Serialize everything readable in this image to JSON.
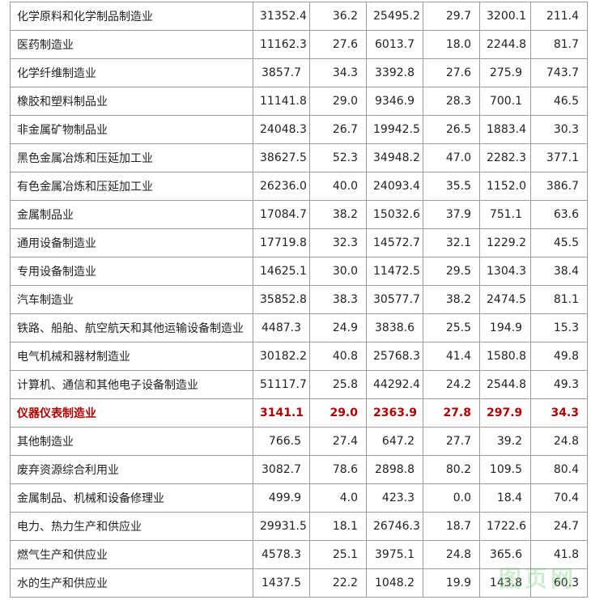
{
  "table": {
    "rows": [
      [
        "化学原料和化学制品制造业",
        "31352.4",
        "36.2",
        "25495.2",
        "29.7",
        "3200.1",
        "211.4"
      ],
      [
        "医药制造业",
        "11162.3",
        "27.6",
        "6013.7",
        "18.0",
        "2244.8",
        "81.7"
      ],
      [
        "化学纤维制造业",
        "3857.7",
        "34.3",
        "3392.8",
        "27.6",
        "275.9",
        "743.7"
      ],
      [
        "橡胶和塑料制品业",
        "11141.8",
        "29.0",
        "9346.9",
        "28.3",
        "700.1",
        "46.5"
      ],
      [
        "非金属矿物制品业",
        "24048.3",
        "26.7",
        "19942.5",
        "26.5",
        "1883.4",
        "30.3"
      ],
      [
        "黑色金属冶炼和压延加工业",
        "38627.5",
        "52.3",
        "34948.2",
        "47.0",
        "2282.3",
        "377.1"
      ],
      [
        "有色金属冶炼和压延加工业",
        "26236.0",
        "40.0",
        "24093.4",
        "35.5",
        "1152.0",
        "386.7"
      ],
      [
        "金属制品业",
        "17084.7",
        "38.2",
        "15032.6",
        "37.9",
        "751.1",
        "63.6"
      ],
      [
        "通用设备制造业",
        "17719.8",
        "32.3",
        "14572.7",
        "32.1",
        "1229.2",
        "45.5"
      ],
      [
        "专用设备制造业",
        "14625.1",
        "30.0",
        "11472.5",
        "29.5",
        "1304.3",
        "38.4"
      ],
      [
        "汽车制造业",
        "35852.8",
        "38.3",
        "30577.7",
        "38.2",
        "2474.5",
        "81.1"
      ],
      [
        "铁路、船舶、航空航天和其他运输设备制造业",
        "4487.3",
        "24.9",
        "3838.6",
        "25.5",
        "194.9",
        "15.3"
      ],
      [
        "电气机械和器材制造业",
        "30182.2",
        "40.8",
        "25768.3",
        "41.4",
        "1580.8",
        "49.8"
      ],
      [
        "计算机、通信和其他电子设备制造业",
        "51117.7",
        "25.8",
        "44292.4",
        "24.2",
        "2544.8",
        "49.3"
      ],
      [
        "仪器仪表制造业",
        "3141.1",
        "29.0",
        "2363.9",
        "27.8",
        "297.9",
        "34.3"
      ],
      [
        "其他制造业",
        "766.5",
        "27.4",
        "647.2",
        "27.7",
        "39.2",
        "24.8"
      ],
      [
        "废弃资源综合利用业",
        "3082.7",
        "78.6",
        "2898.8",
        "80.2",
        "109.5",
        "80.4"
      ],
      [
        "金属制品、机械和设备修理业",
        "499.9",
        "4.0",
        "423.3",
        "0.0",
        "18.4",
        "70.4"
      ],
      [
        "电力、热力生产和供应业",
        "29931.5",
        "18.1",
        "26746.3",
        "18.7",
        "1722.6",
        "24.7"
      ],
      [
        "燃气生产和供应业",
        "4578.3",
        "25.1",
        "3975.1",
        "24.8",
        "365.6",
        "41.8"
      ],
      [
        "水的生产和供应业",
        "1437.5",
        "22.2",
        "1048.2",
        "19.9",
        "143.8",
        "60.3"
      ]
    ]
  },
  "watermark": "图页网"
}
